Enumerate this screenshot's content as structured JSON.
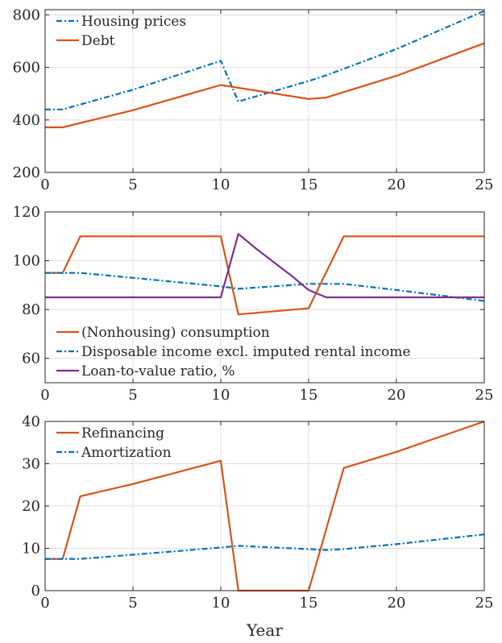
{
  "colors": {
    "orange": "#D95319",
    "blue": "#0072BD",
    "purple": "#7E2F8E",
    "axis": "#262626",
    "grid": "#dfdfdf"
  },
  "xlabel": "Year",
  "chart_data": [
    {
      "type": "line",
      "xlabel": "",
      "ylabel": "",
      "xlim": [
        0,
        25
      ],
      "ylim": [
        200,
        820
      ],
      "xticks": [
        0,
        5,
        10,
        15,
        20,
        25
      ],
      "yticks": [
        200,
        400,
        600,
        800
      ],
      "grid": true,
      "legend_position": "top-left",
      "series": [
        {
          "name": "Housing prices",
          "color": "#0072BD",
          "dash": "dashdot",
          "x": [
            0,
            1,
            5,
            10,
            11,
            15,
            16,
            20,
            25
          ],
          "y": [
            440,
            440,
            515,
            625,
            470,
            548,
            570,
            670,
            815
          ]
        },
        {
          "name": "Debt",
          "color": "#D95319",
          "dash": "solid",
          "x": [
            0,
            1,
            5,
            10,
            15,
            16,
            20,
            25
          ],
          "y": [
            372,
            372,
            437,
            533,
            480,
            485,
            568,
            692
          ]
        }
      ]
    },
    {
      "type": "line",
      "xlabel": "",
      "ylabel": "",
      "xlim": [
        0,
        25
      ],
      "ylim": [
        50,
        120
      ],
      "xticks": [
        0,
        5,
        10,
        15,
        20,
        25
      ],
      "yticks": [
        60,
        80,
        100,
        120
      ],
      "grid": true,
      "legend_position": "bottom-left",
      "series": [
        {
          "name": "(Nonhousing) consumption",
          "color": "#D95319",
          "dash": "solid",
          "x": [
            0,
            1,
            2,
            10,
            11,
            15,
            17,
            25
          ],
          "y": [
            95,
            95,
            110,
            110,
            78,
            80.5,
            110,
            110
          ]
        },
        {
          "name": "Disposable income excl. imputed rental income",
          "color": "#0072BD",
          "dash": "dashdot",
          "x": [
            0,
            2,
            5,
            10,
            11,
            15,
            17,
            20,
            25
          ],
          "y": [
            95,
            95,
            93,
            89.5,
            88.5,
            90.5,
            90.5,
            88,
            83.5
          ]
        },
        {
          "name": "Loan-to-value ratio, %",
          "color": "#7E2F8E",
          "dash": "solid",
          "x": [
            0,
            10,
            11,
            12,
            13,
            14,
            15,
            16,
            25
          ],
          "y": [
            85,
            85,
            111,
            105,
            99.5,
            94,
            88,
            85,
            85
          ]
        }
      ]
    },
    {
      "type": "line",
      "xlabel": "Year",
      "ylabel": "",
      "xlim": [
        0,
        25
      ],
      "ylim": [
        0,
        40
      ],
      "xticks": [
        0,
        5,
        10,
        15,
        20,
        25
      ],
      "yticks": [
        0,
        10,
        20,
        30,
        40
      ],
      "grid": true,
      "legend_position": "top-left",
      "series": [
        {
          "name": "Refinancing",
          "color": "#D95319",
          "dash": "solid",
          "x": [
            0,
            1,
            2,
            5,
            10,
            11,
            15,
            17,
            20,
            25
          ],
          "y": [
            7.5,
            7.5,
            22.3,
            25.2,
            30.7,
            0,
            0,
            29,
            32.8,
            40
          ]
        },
        {
          "name": "Amortization",
          "color": "#0072BD",
          "dash": "dashdot",
          "x": [
            0,
            2,
            5,
            10,
            11,
            15,
            16,
            17,
            20,
            25
          ],
          "y": [
            7.5,
            7.5,
            8.5,
            10.2,
            10.6,
            9.8,
            9.6,
            9.8,
            11,
            13.3
          ]
        }
      ]
    }
  ]
}
